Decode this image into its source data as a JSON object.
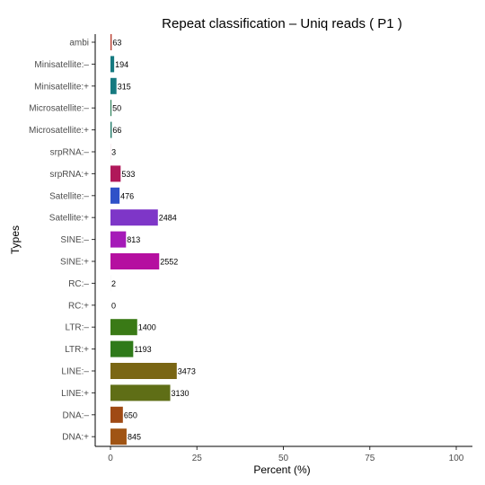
{
  "chart_data": {
    "type": "bar",
    "orientation": "horizontal",
    "title": "Repeat classification – Uniq reads ( P1 )",
    "xlabel": "Percent (%)",
    "ylabel": "Types",
    "xlim": [
      0,
      100
    ],
    "xticks": [
      0,
      25,
      50,
      75,
      100
    ],
    "grid": false,
    "legend": "none",
    "categories": [
      "ambi",
      "Minisatellite:–",
      "Minisatellite:+",
      "Microsatellite:–",
      "Microsatellite:+",
      "srpRNA:–",
      "srpRNA:+",
      "Satellite:–",
      "Satellite:+",
      "SINE:–",
      "SINE:+",
      "RC:–",
      "RC:+",
      "LTR:–",
      "LTR:+",
      "LINE:–",
      "LINE:+",
      "DNA:–",
      "DNA:+"
    ],
    "values": [
      0.35,
      1.07,
      1.74,
      0.28,
      0.36,
      0.02,
      2.94,
      2.63,
      13.71,
      4.49,
      14.09,
      0.01,
      0.0,
      7.73,
      6.58,
      19.17,
      17.28,
      3.59,
      4.66
    ],
    "labels": [
      "63",
      "194",
      "315",
      "50",
      "66",
      "3",
      "533",
      "476",
      "2484",
      "813",
      "2552",
      "2",
      "0",
      "1400",
      "1193",
      "3473",
      "3130",
      "650",
      "845"
    ],
    "colors": [
      "#b83a2c",
      "#167a80",
      "#167a80",
      "#1f7a50",
      "#1f7a68",
      "#b0185a",
      "#b0185a",
      "#2f52c8",
      "#7e36c8",
      "#a51ab8",
      "#b50fa0",
      "#888888",
      "#888888",
      "#3a7a16",
      "#2f7a1a",
      "#7a6614",
      "#5f6e16",
      "#a04a14",
      "#a05414"
    ]
  }
}
